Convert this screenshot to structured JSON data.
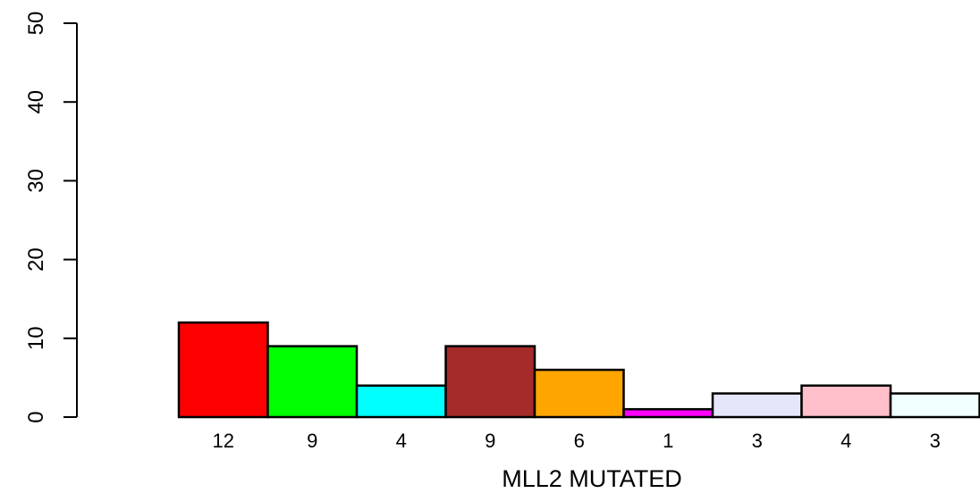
{
  "chart_data": {
    "type": "bar",
    "xlabel": "MLL2 MUTATED",
    "ylabel": "",
    "ylim": [
      0,
      50
    ],
    "yticks": [
      0,
      10,
      20,
      30,
      40,
      50
    ],
    "grid": false,
    "values": [
      12,
      9,
      4,
      9,
      6,
      1,
      3,
      4,
      3
    ],
    "bar_labels": [
      "12",
      "9",
      "4",
      "9",
      "6",
      "1",
      "3",
      "4",
      "3"
    ],
    "colors": [
      "#FF0000",
      "#00FF00",
      "#00FFFF",
      "#A52A2A",
      "#FFA500",
      "#FF00FF",
      "#E6E6FA",
      "#FFC0CB",
      "#F0FFFF"
    ]
  }
}
